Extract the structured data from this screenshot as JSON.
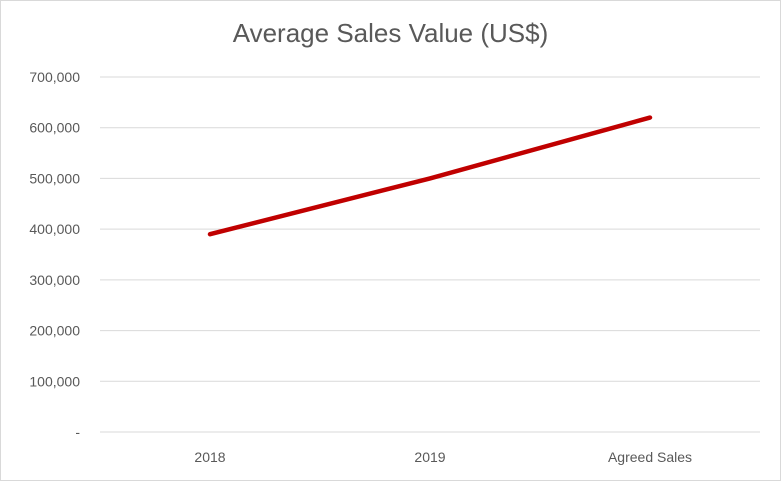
{
  "chart_data": {
    "type": "line",
    "title": "Average Sales Value (US$)",
    "xlabel": "",
    "ylabel": "",
    "categories": [
      "2018",
      "2019",
      "Agreed Sales"
    ],
    "series": [
      {
        "values": [
          390000,
          500000,
          620000
        ]
      }
    ],
    "ylim": [
      0,
      700000
    ],
    "yticks": [
      0,
      100000,
      200000,
      300000,
      400000,
      500000,
      600000,
      700000
    ],
    "ytick_labels": [
      "-",
      "100,000",
      "200,000",
      "300,000",
      "400,000",
      "500,000",
      "600,000",
      "700,000"
    ],
    "grid": true,
    "legend": "none",
    "colors": {
      "line": "#c00000",
      "grid": "#d9d9d9",
      "text": "#595959"
    }
  }
}
